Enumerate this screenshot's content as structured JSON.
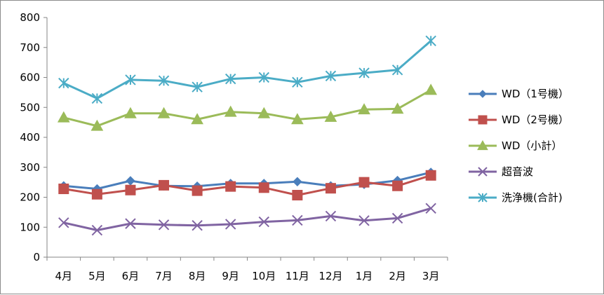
{
  "chart_data": {
    "type": "line",
    "categories": [
      "4月",
      "5月",
      "6月",
      "7月",
      "8月",
      "9月",
      "10月",
      "11月",
      "12月",
      "1月",
      "2月",
      "3月"
    ],
    "ylim": [
      0,
      800
    ],
    "yticks": [
      0,
      100,
      200,
      300,
      400,
      500,
      600,
      700,
      800
    ],
    "grid": false,
    "legend_position": "right",
    "series": [
      {
        "name": "WD（1号機）",
        "color": "#4a7ebb",
        "marker": "diamond",
        "values": [
          238,
          228,
          255,
          238,
          237,
          246,
          246,
          252,
          238,
          243,
          256,
          283
        ]
      },
      {
        "name": "WD（2号機）",
        "color": "#c0504d",
        "marker": "square",
        "values": [
          228,
          210,
          224,
          240,
          222,
          236,
          232,
          207,
          230,
          250,
          238,
          273
        ]
      },
      {
        "name": "WD（小計）",
        "color": "#9bbb59",
        "marker": "triangle",
        "values": [
          466,
          438,
          480,
          480,
          460,
          485,
          480,
          460,
          468,
          493,
          495,
          558
        ]
      },
      {
        "name": "超音波",
        "color": "#8064a2",
        "marker": "x",
        "values": [
          115,
          90,
          112,
          108,
          106,
          110,
          118,
          123,
          137,
          122,
          130,
          163
        ]
      },
      {
        "name": "洗浄機(合計)",
        "color": "#4bacc6",
        "marker": "asterisk",
        "values": [
          581,
          530,
          592,
          589,
          568,
          595,
          600,
          584,
          605,
          615,
          625,
          722
        ]
      }
    ]
  }
}
